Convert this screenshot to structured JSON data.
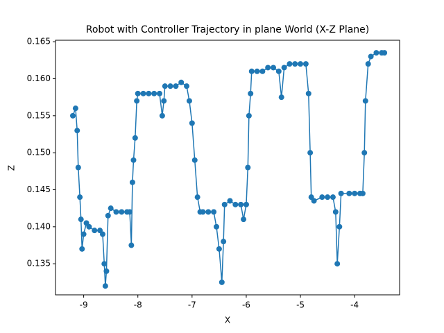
{
  "chart_data": {
    "type": "line",
    "title": "Robot with Controller Trajectory in plane World (X-Z Plane)",
    "x_label": "X",
    "y_label": "Z",
    "color": "#1f77b4",
    "markers": true,
    "x": [
      -9.2,
      -9.15,
      -9.12,
      -9.1,
      -9.07,
      -9.05,
      -9.03,
      -9.0,
      -8.95,
      -8.9,
      -8.8,
      -8.7,
      -8.65,
      -8.62,
      -8.6,
      -8.58,
      -8.55,
      -8.5,
      -8.4,
      -8.3,
      -8.2,
      -8.15,
      -8.12,
      -8.1,
      -8.08,
      -8.05,
      -8.02,
      -8.0,
      -7.9,
      -7.8,
      -7.7,
      -7.6,
      -7.55,
      -7.52,
      -7.5,
      -7.4,
      -7.3,
      -7.2,
      -7.1,
      -7.05,
      -7.0,
      -6.95,
      -6.9,
      -6.85,
      -6.8,
      -6.7,
      -6.6,
      -6.55,
      -6.5,
      -6.45,
      -6.42,
      -6.4,
      -6.3,
      -6.2,
      -6.1,
      -6.05,
      -6.0,
      -5.97,
      -5.95,
      -5.92,
      -5.9,
      -5.8,
      -5.7,
      -5.6,
      -5.5,
      -5.4,
      -5.35,
      -5.3,
      -5.2,
      -5.1,
      -5.0,
      -4.9,
      -4.85,
      -4.82,
      -4.8,
      -4.75,
      -4.6,
      -4.5,
      -4.4,
      -4.35,
      -4.32,
      -4.28,
      -4.25,
      -4.1,
      -4.0,
      -3.9,
      -3.85,
      -3.82,
      -3.8,
      -3.75,
      -3.7,
      -3.6,
      -3.5,
      -3.45
    ],
    "values": [
      0.155,
      0.156,
      0.153,
      0.148,
      0.144,
      0.141,
      0.137,
      0.139,
      0.1405,
      0.14,
      0.1395,
      0.1395,
      0.139,
      0.135,
      0.132,
      0.134,
      0.1415,
      0.1425,
      0.142,
      0.142,
      0.142,
      0.142,
      0.1375,
      0.146,
      0.149,
      0.152,
      0.157,
      0.158,
      0.158,
      0.158,
      0.158,
      0.158,
      0.155,
      0.157,
      0.159,
      0.159,
      0.159,
      0.1595,
      0.159,
      0.157,
      0.154,
      0.149,
      0.144,
      0.142,
      0.142,
      0.142,
      0.142,
      0.14,
      0.137,
      0.1325,
      0.138,
      0.143,
      0.1435,
      0.143,
      0.143,
      0.141,
      0.143,
      0.148,
      0.155,
      0.158,
      0.161,
      0.161,
      0.161,
      0.1615,
      0.1615,
      0.161,
      0.1575,
      0.1615,
      0.162,
      0.162,
      0.162,
      0.162,
      0.158,
      0.15,
      0.144,
      0.1435,
      0.144,
      0.144,
      0.144,
      0.142,
      0.135,
      0.14,
      0.1445,
      0.1445,
      0.1445,
      0.1445,
      0.1445,
      0.15,
      0.157,
      0.162,
      0.163,
      0.1635,
      0.1635,
      0.1635
    ],
    "xlim": [
      -9.52,
      -3.17
    ],
    "ylim": [
      0.1308,
      0.1652
    ],
    "xticks": [
      -9,
      -8,
      -7,
      -6,
      -5,
      -4
    ],
    "yticks": [
      0.135,
      {
        "value": 0.14,
        "label": "0.140"
      },
      0.145,
      {
        "value": 0.15,
        "label": "0.150"
      },
      0.155,
      {
        "value": 0.16,
        "label": "0.160"
      },
      0.165
    ]
  }
}
